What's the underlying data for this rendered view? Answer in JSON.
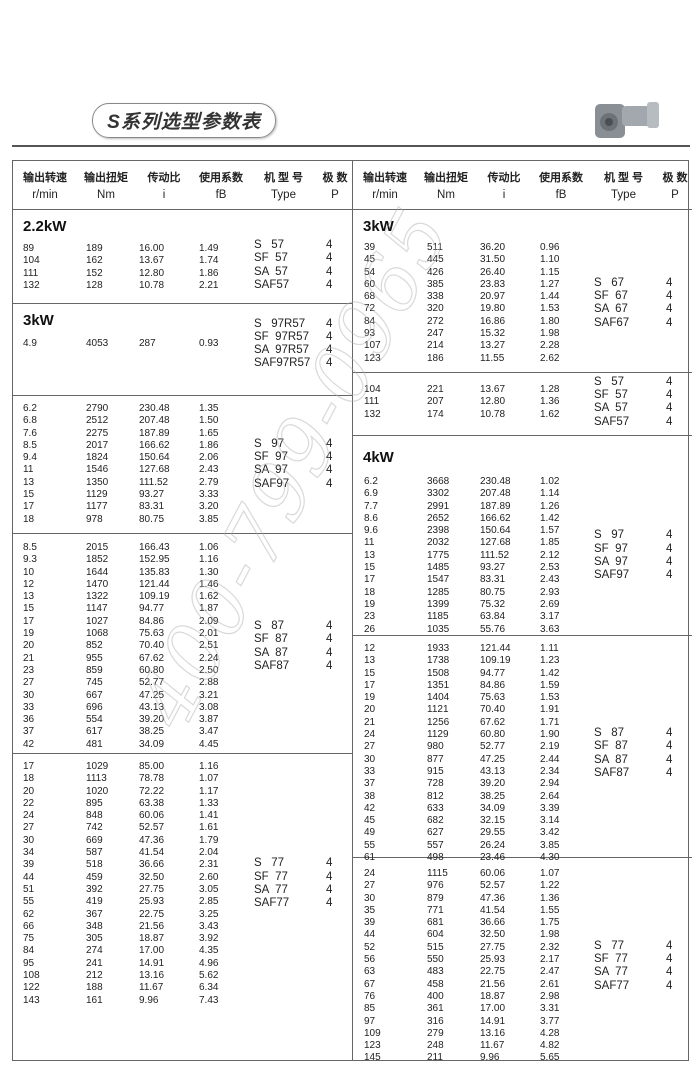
{
  "page_title": "S系列选型参数表",
  "header": {
    "columns": [
      {
        "cn": "输出转速",
        "en": "r/min"
      },
      {
        "cn": "输出扭矩",
        "en": "Nm"
      },
      {
        "cn": "传动比",
        "en": "i"
      },
      {
        "cn": "使用系数",
        "en": "fB"
      },
      {
        "cn": "机 型 号",
        "en": "Type"
      },
      {
        "cn": "极  数",
        "en": "P"
      }
    ]
  },
  "watermark": "400-799-0965",
  "left": [
    {
      "title": "2.2kW",
      "pole": "4",
      "types": [
        "S   57",
        "SF  57",
        "SA  57",
        "SAF57"
      ],
      "rows": [
        [
          "89",
          "189",
          "16.00",
          "1.49"
        ],
        [
          "104",
          "162",
          "13.67",
          "1.74"
        ],
        [
          "111",
          "152",
          "12.80",
          "1.86"
        ],
        [
          "132",
          "128",
          "10.78",
          "2.21"
        ]
      ]
    },
    {
      "title": "3kW",
      "pole": "4",
      "types": [
        "S   97R57",
        "SF  97R57",
        "SA  97R57",
        "SAF97R57"
      ],
      "rows": [
        [
          "4.9",
          "4053",
          "287",
          "0.93"
        ]
      ]
    },
    {
      "title": "",
      "pole": "4",
      "types": [
        "S   97",
        "SF  97",
        "SA  97",
        "SAF97"
      ],
      "rows": [
        [
          "6.2",
          "2790",
          "230.48",
          "1.35"
        ],
        [
          "6.8",
          "2512",
          "207.48",
          "1.50"
        ],
        [
          "7.6",
          "2275",
          "187.89",
          "1.65"
        ],
        [
          "8.5",
          "2017",
          "166.62",
          "1.86"
        ],
        [
          "9.4",
          "1824",
          "150.64",
          "2.06"
        ],
        [
          "11",
          "1546",
          "127.68",
          "2.43"
        ],
        [
          "13",
          "1350",
          "111.52",
          "2.79"
        ],
        [
          "15",
          "1129",
          "93.27",
          "3.33"
        ],
        [
          "17",
          "1177",
          "83.31",
          "3.20"
        ],
        [
          "18",
          "978",
          "80.75",
          "3.85"
        ]
      ]
    },
    {
      "title": "",
      "pole": "4",
      "types": [
        "S   87",
        "SF  87",
        "SA  87",
        "SAF87"
      ],
      "rows": [
        [
          "8.5",
          "2015",
          "166.43",
          "1.06"
        ],
        [
          "9.3",
          "1852",
          "152.95",
          "1.16"
        ],
        [
          "10",
          "1644",
          "135.83",
          "1.30"
        ],
        [
          "12",
          "1470",
          "121.44",
          "1.46"
        ],
        [
          "13",
          "1322",
          "109.19",
          "1.62"
        ],
        [
          "15",
          "1147",
          "94.77",
          "1.87"
        ],
        [
          "17",
          "1027",
          "84.86",
          "2.09"
        ],
        [
          "19",
          "1068",
          "75.63",
          "2.01"
        ],
        [
          "20",
          "852",
          "70.40",
          "2.51"
        ],
        [
          "21",
          "955",
          "67.62",
          "2.24"
        ],
        [
          "23",
          "859",
          "60.80",
          "2.50"
        ],
        [
          "27",
          "745",
          "52.77",
          "2.88"
        ],
        [
          "30",
          "667",
          "47.25",
          "3.21"
        ],
        [
          "33",
          "696",
          "43.13",
          "3.08"
        ],
        [
          "36",
          "554",
          "39.20",
          "3.87"
        ],
        [
          "37",
          "617",
          "38.25",
          "3.47"
        ],
        [
          "42",
          "481",
          "34.09",
          "4.45"
        ]
      ]
    },
    {
      "title": "",
      "pole": "4",
      "types": [
        "S   77",
        "SF  77",
        "SA  77",
        "SAF77"
      ],
      "rows": [
        [
          "17",
          "1029",
          "85.00",
          "1.16"
        ],
        [
          "18",
          "1113",
          "78.78",
          "1.07"
        ],
        [
          "20",
          "1020",
          "72.22",
          "1.17"
        ],
        [
          "22",
          "895",
          "63.38",
          "1.33"
        ],
        [
          "24",
          "848",
          "60.06",
          "1.41"
        ],
        [
          "27",
          "742",
          "52.57",
          "1.61"
        ],
        [
          "30",
          "669",
          "47.36",
          "1.79"
        ],
        [
          "34",
          "587",
          "41.54",
          "2.04"
        ],
        [
          "39",
          "518",
          "36.66",
          "2.31"
        ],
        [
          "44",
          "459",
          "32.50",
          "2.60"
        ],
        [
          "51",
          "392",
          "27.75",
          "3.05"
        ],
        [
          "55",
          "419",
          "25.93",
          "2.85"
        ],
        [
          "62",
          "367",
          "22.75",
          "3.25"
        ],
        [
          "66",
          "348",
          "21.56",
          "3.43"
        ],
        [
          "75",
          "305",
          "18.87",
          "3.92"
        ],
        [
          "84",
          "274",
          "17.00",
          "4.35"
        ],
        [
          "95",
          "241",
          "14.91",
          "4.96"
        ],
        [
          "108",
          "212",
          "13.16",
          "5.62"
        ],
        [
          "122",
          "188",
          "11.67",
          "6.34"
        ],
        [
          "143",
          "161",
          "9.96",
          "7.43"
        ]
      ]
    }
  ],
  "right": [
    {
      "title": "3kW",
      "pole": "4",
      "types": [
        "S   67",
        "SF  67",
        "SA  67",
        "SAF67"
      ],
      "rows": [
        [
          "39",
          "511",
          "36.20",
          "0.96"
        ],
        [
          "45",
          "445",
          "31.50",
          "1.10"
        ],
        [
          "54",
          "426",
          "26.40",
          "1.15"
        ],
        [
          "60",
          "385",
          "23.83",
          "1.27"
        ],
        [
          "68",
          "338",
          "20.97",
          "1.44"
        ],
        [
          "72",
          "320",
          "19.80",
          "1.53"
        ],
        [
          "84",
          "272",
          "16.86",
          "1.80"
        ],
        [
          "93",
          "247",
          "15.32",
          "1.98"
        ],
        [
          "107",
          "214",
          "13.27",
          "2.28"
        ],
        [
          "123",
          "186",
          "11.55",
          "2.62"
        ]
      ]
    },
    {
      "title": "",
      "pole": "4",
      "types": [
        "S   57",
        "SF  57",
        "SA  57",
        "SAF57"
      ],
      "rows": [
        [
          "104",
          "221",
          "13.67",
          "1.28"
        ],
        [
          "111",
          "207",
          "12.80",
          "1.36"
        ],
        [
          "132",
          "174",
          "10.78",
          "1.62"
        ]
      ]
    },
    {
      "title": "4kW",
      "pole": "4",
      "types": [
        "S   97",
        "SF  97",
        "SA  97",
        "SAF97"
      ],
      "rows": [
        [
          "6.2",
          "3668",
          "230.48",
          "1.02"
        ],
        [
          "6.9",
          "3302",
          "207.48",
          "1.14"
        ],
        [
          "7.7",
          "2991",
          "187.89",
          "1.26"
        ],
        [
          "8.6",
          "2652",
          "166.62",
          "1.42"
        ],
        [
          "9.6",
          "2398",
          "150.64",
          "1.57"
        ],
        [
          "11",
          "2032",
          "127.68",
          "1.85"
        ],
        [
          "13",
          "1775",
          "111.52",
          "2.12"
        ],
        [
          "15",
          "1485",
          "93.27",
          "2.53"
        ],
        [
          "17",
          "1547",
          "83.31",
          "2.43"
        ],
        [
          "18",
          "1285",
          "80.75",
          "2.93"
        ],
        [
          "19",
          "1399",
          "75.32",
          "2.69"
        ],
        [
          "23",
          "1185",
          "63.84",
          "3.17"
        ],
        [
          "26",
          "1035",
          "55.76",
          "3.63"
        ]
      ]
    },
    {
      "title": "",
      "pole": "4",
      "types": [
        "S   87",
        "SF  87",
        "SA  87",
        "SAF87"
      ],
      "rows": [
        [
          "12",
          "1933",
          "121.44",
          "1.11"
        ],
        [
          "13",
          "1738",
          "109.19",
          "1.23"
        ],
        [
          "15",
          "1508",
          "94.77",
          "1.42"
        ],
        [
          "17",
          "1351",
          "84.86",
          "1.59"
        ],
        [
          "19",
          "1404",
          "75.63",
          "1.53"
        ],
        [
          "20",
          "1121",
          "70.40",
          "1.91"
        ],
        [
          "21",
          "1256",
          "67.62",
          "1.71"
        ],
        [
          "24",
          "1129",
          "60.80",
          "1.90"
        ],
        [
          "27",
          "980",
          "52.77",
          "2.19"
        ],
        [
          "30",
          "877",
          "47.25",
          "2.44"
        ],
        [
          "33",
          "915",
          "43.13",
          "2.34"
        ],
        [
          "37",
          "728",
          "39.20",
          "2.94"
        ],
        [
          "38",
          "812",
          "38.25",
          "2.64"
        ],
        [
          "42",
          "633",
          "34.09",
          "3.39"
        ],
        [
          "45",
          "682",
          "32.15",
          "3.14"
        ],
        [
          "49",
          "627",
          "29.55",
          "3.42"
        ],
        [
          "55",
          "557",
          "26.24",
          "3.85"
        ],
        [
          "61",
          "498",
          "23.46",
          "4.30"
        ]
      ]
    },
    {
      "title": "",
      "pole": "4",
      "types": [
        "S   77",
        "SF  77",
        "SA  77",
        "SAF77"
      ],
      "rows": [
        [
          "24",
          "1115",
          "60.06",
          "1.07"
        ],
        [
          "27",
          "976",
          "52.57",
          "1.22"
        ],
        [
          "30",
          "879",
          "47.36",
          "1.36"
        ],
        [
          "35",
          "771",
          "41.54",
          "1.55"
        ],
        [
          "39",
          "681",
          "36.66",
          "1.75"
        ],
        [
          "44",
          "604",
          "32.50",
          "1.98"
        ],
        [
          "52",
          "515",
          "27.75",
          "2.32"
        ],
        [
          "56",
          "550",
          "25.93",
          "2.17"
        ],
        [
          "63",
          "483",
          "22.75",
          "2.47"
        ],
        [
          "67",
          "458",
          "21.56",
          "2.61"
        ],
        [
          "76",
          "400",
          "18.87",
          "2.98"
        ],
        [
          "85",
          "361",
          "17.00",
          "3.31"
        ],
        [
          "97",
          "316",
          "14.91",
          "3.77"
        ],
        [
          "109",
          "279",
          "13.16",
          "4.28"
        ],
        [
          "123",
          "248",
          "11.67",
          "4.82"
        ],
        [
          "145",
          "211",
          "9.96",
          "5.65"
        ]
      ]
    }
  ]
}
